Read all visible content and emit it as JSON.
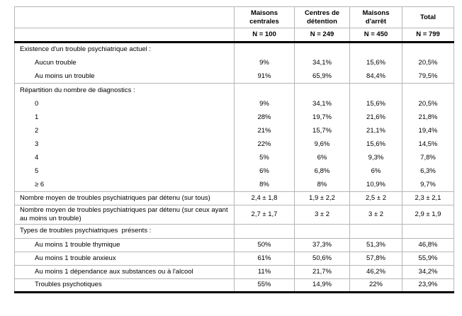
{
  "table": {
    "colors": {
      "grid": "#b6b6b6",
      "heavy_rule": "#000000",
      "text": "#000000",
      "background": "#ffffff"
    },
    "columns": [
      {
        "label": "Maisons centrales",
        "n": "N = 100"
      },
      {
        "label": "Centres de détention",
        "n": "N = 249"
      },
      {
        "label": "Maisons d'arrêt",
        "n": "N = 450"
      },
      {
        "label": "Total",
        "n": "N = 799"
      }
    ],
    "rows": [
      {
        "type": "section",
        "label": "Existence d'un trouble psychiatrique actuel :",
        "values": [
          "",
          "",
          "",
          ""
        ],
        "rule_above": false
      },
      {
        "type": "item",
        "label": "Aucun trouble",
        "values": [
          "9%",
          "34,1%",
          "15,6%",
          "20,5%"
        ],
        "rule_above": false
      },
      {
        "type": "item",
        "label": "Au moins un trouble",
        "values": [
          "91%",
          "65,9%",
          "84,4%",
          "79,5%"
        ],
        "rule_above": false
      },
      {
        "type": "section",
        "label": "Répartition du nombre de diagnostics :",
        "values": [
          "",
          "",
          "",
          ""
        ],
        "rule_above": true
      },
      {
        "type": "item",
        "label": "0",
        "values": [
          "9%",
          "34,1%",
          "15,6%",
          "20,5%"
        ],
        "rule_above": false
      },
      {
        "type": "item",
        "label": "1",
        "values": [
          "28%",
          "19,7%",
          "21,6%",
          "21,8%"
        ],
        "rule_above": false
      },
      {
        "type": "item",
        "label": "2",
        "values": [
          "21%",
          "15,7%",
          "21,1%",
          "19,4%"
        ],
        "rule_above": false
      },
      {
        "type": "item",
        "label": "3",
        "values": [
          "22%",
          "9,6%",
          "15,6%",
          "14,5%"
        ],
        "rule_above": false
      },
      {
        "type": "item",
        "label": "4",
        "values": [
          "5%",
          "6%",
          "9,3%",
          "7,8%"
        ],
        "rule_above": false
      },
      {
        "type": "item",
        "label": "5",
        "values": [
          "6%",
          "6,8%",
          "6%",
          "6,3%"
        ],
        "rule_above": false
      },
      {
        "type": "item",
        "label": "≥ 6",
        "values": [
          "8%",
          "8%",
          "10,9%",
          "9,7%"
        ],
        "rule_above": false
      },
      {
        "type": "plain",
        "label": "Nombre moyen de troubles psychiatriques par détenu (sur tous)",
        "values": [
          "2,4 ± 1,8",
          "1,9 ± 2,2",
          "2,5 ± 2",
          "2,3 ± 2,1"
        ],
        "rule_above": true
      },
      {
        "type": "plain",
        "label": "Nombre moyen de troubles psychiatriques par détenu (sur ceux ayant au moins un trouble)",
        "values": [
          "2,7 ± 1,7",
          "3 ± 2",
          "3 ± 2",
          "2,9 ± 1,9"
        ],
        "rule_above": true
      },
      {
        "type": "section",
        "label": "Types de troubles psychiatriques  présents :",
        "values": [
          "",
          "",
          "",
          ""
        ],
        "rule_above": true
      },
      {
        "type": "item",
        "label": "Au moins 1 trouble thymique",
        "values": [
          "50%",
          "37,3%",
          "51,3%",
          "46,8%"
        ],
        "rule_above": true
      },
      {
        "type": "item",
        "label": "Au moins 1 trouble anxieux",
        "values": [
          "61%",
          "50,6%",
          "57,8%",
          "55,9%"
        ],
        "rule_above": true
      },
      {
        "type": "item",
        "label": "Au moins 1 dépendance aux substances ou à l'alcool",
        "values": [
          "11%",
          "21,7%",
          "46,2%",
          "34,2%"
        ],
        "rule_above": true
      },
      {
        "type": "item",
        "label": "Troubles psychotiques",
        "values": [
          "55%",
          "14,9%",
          "22%",
          "23,9%"
        ],
        "rule_above": true
      }
    ]
  }
}
